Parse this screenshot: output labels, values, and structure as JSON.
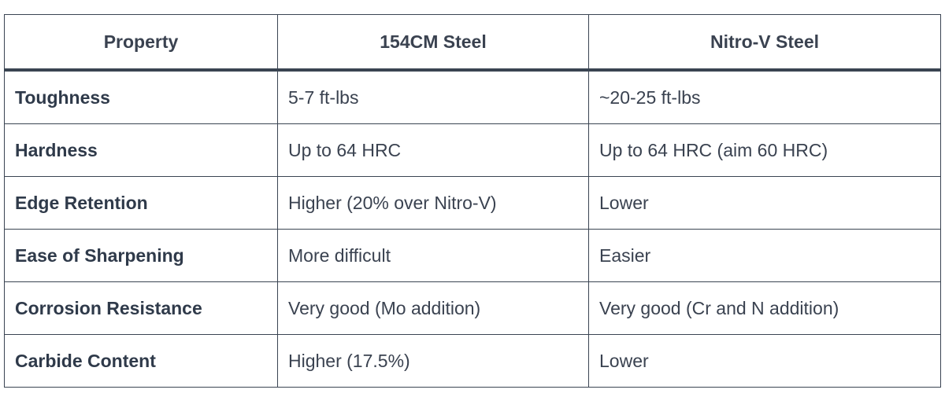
{
  "table": {
    "header": [
      "Property",
      "154CM Steel",
      "Nitro-V Steel"
    ],
    "rows": [
      [
        "Toughness",
        "5-7 ft-lbs",
        "~20-25 ft-lbs"
      ],
      [
        "Hardness",
        "Up to 64 HRC",
        "Up to 64 HRC (aim 60 HRC)"
      ],
      [
        "Edge Retention",
        "Higher (20% over Nitro-V)",
        "Lower"
      ],
      [
        "Ease of Sharpening",
        "More difficult",
        "Easier"
      ],
      [
        "Corrosion Resistance",
        "Very good (Mo addition)",
        "Very good (Cr and N addition)"
      ],
      [
        "Carbide Content",
        "Higher (17.5%)",
        "Lower"
      ]
    ]
  }
}
